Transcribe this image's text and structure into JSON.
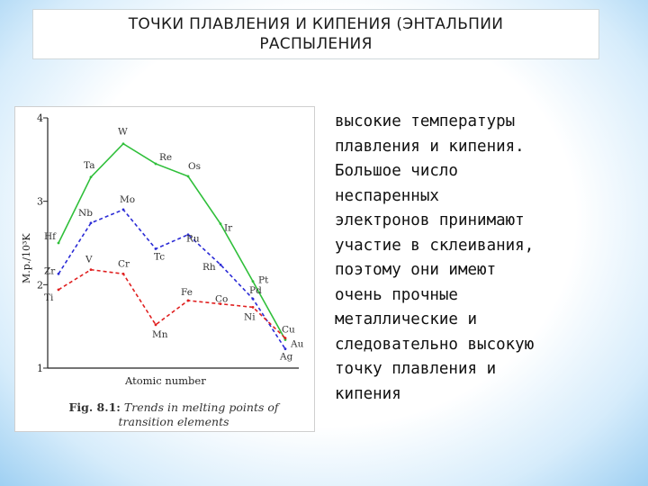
{
  "slide": {
    "title_line1": "ТОЧКИ ПЛАВЛЕНИЯ И КИПЕНИЯ (ЭНТАЛЬПИИ",
    "title_line2": "РАСПЫЛЕНИЯ",
    "body_lines": [
      "высокие температуры",
      "плавления и кипения.",
      "Большое число",
      "неспаренных",
      "электронов принимают",
      "участие в склеивания,",
      "поэтому они имеют",
      "очень прочные",
      "металлические и",
      "следовательно высокую",
      "точку плавления и",
      "кипения"
    ]
  },
  "figure": {
    "caption_prefix": "Fig. 8.1:",
    "caption_line1": "Trends in melting points of",
    "caption_line2": "transition elements"
  },
  "chart_data": {
    "type": "line",
    "xlabel": "Atomic number",
    "ylabel": "M.p./10³K",
    "ylim": [
      1,
      4
    ],
    "yticks": [
      "1",
      "2",
      "3",
      "4"
    ],
    "grid": false,
    "series": [
      {
        "color": "#2fbf3a",
        "dash": "solid",
        "x": [
          "Hf",
          "Ta",
          "W",
          "Re",
          "Os",
          "Ir",
          "Pt",
          "Au"
        ],
        "values": [
          2.5,
          3.29,
          3.69,
          3.45,
          3.3,
          2.73,
          2.04,
          1.34
        ]
      },
      {
        "color": "#2b2bd6",
        "dash": "dashed",
        "x": [
          "Zr",
          "Nb",
          "Mo",
          "Tc",
          "Ru",
          "Rh",
          "Pd",
          "Ag"
        ],
        "values": [
          2.13,
          2.74,
          2.9,
          2.43,
          2.6,
          2.24,
          1.83,
          1.23
        ]
      },
      {
        "color": "#e02020",
        "dash": "dashed",
        "x": [
          "Ti",
          "V",
          "Cr",
          "Mn",
          "Fe",
          "Co",
          "Ni",
          "Cu"
        ],
        "values": [
          1.94,
          2.18,
          2.13,
          1.52,
          1.81,
          1.77,
          1.73,
          1.36
        ]
      }
    ],
    "point_labels": [
      "Hf",
      "Ta",
      "W",
      "Re",
      "Os",
      "Ir",
      "Pt",
      "Au",
      "Zr",
      "Nb",
      "Mo",
      "Tc",
      "Ru",
      "Rh",
      "Pd",
      "Ag",
      "Ti",
      "V",
      "Cr",
      "Mn",
      "Fe",
      "Co",
      "Ni",
      "Cu"
    ]
  }
}
